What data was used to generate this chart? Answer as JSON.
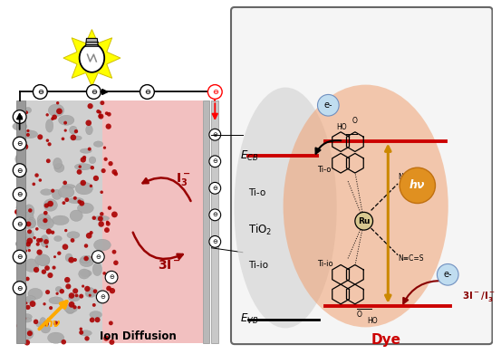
{
  "bg_color": "#ffffff",
  "cell_electrolyte_color": "#f2c0c0",
  "tio2_grey": "#b0b0b0",
  "electrode_left_color": "#a8a8a8",
  "electrode_right_color": "#c0c0c0",
  "dark_red": "#990000",
  "red_line": "#cc0000",
  "golden": "#cc8800",
  "box_bg": "#f0f0f0",
  "grey_oval_color": "#d0d0d0",
  "dye_oval_color": "#f0a878",
  "hv_circle_color": "#e09020",
  "e_circle_color": "#b8d8f0",
  "e_circle_edge": "#7090c0",
  "yellow_star": "#ffff00",
  "bulb_white": "#ffffff",
  "ion_diffusion": "Ion Diffusion",
  "tio2_text": "TiO$_2$",
  "ecb_text": "E$_{CB}$",
  "evb_text": "E$_{VB}$",
  "dye_text": "Dye",
  "hv_text": "hν",
  "i3_text": "I$_3^-$",
  "3i_text": "3I$^-$",
  "3i_i3_text": "3I$^-$/I$_3^-$",
  "ti_o_text": "Ti-o",
  "ti_io_text": "Ti-io"
}
